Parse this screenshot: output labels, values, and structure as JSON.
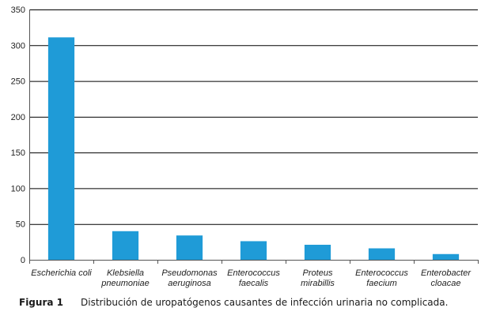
{
  "colors": {
    "bar": "#1f9bd7",
    "gridline": "#000000",
    "axis": "#555555"
  },
  "caption": {
    "label": "Figura 1",
    "text": "Distribución de uropatógenos causantes de infección urinaria no complicada."
  },
  "chart_data": {
    "type": "bar",
    "title": "",
    "xlabel": "",
    "ylabel": "",
    "ylim": [
      0,
      350
    ],
    "yticks": [
      0,
      50,
      100,
      150,
      200,
      250,
      300,
      350
    ],
    "grid": "horizontal",
    "categories": [
      [
        "Escherichia coli"
      ],
      [
        "Klebsiella",
        "pneumoniae"
      ],
      [
        "Pseudomonas",
        "aeruginosa"
      ],
      [
        "Enterococcus",
        "faecalis"
      ],
      [
        "Proteus",
        "mirabillis"
      ],
      [
        "Enterococcus",
        "faecium"
      ],
      [
        "Enterobacter",
        "cloacae"
      ]
    ],
    "values": [
      311,
      40,
      34,
      26,
      21,
      16,
      8
    ]
  }
}
